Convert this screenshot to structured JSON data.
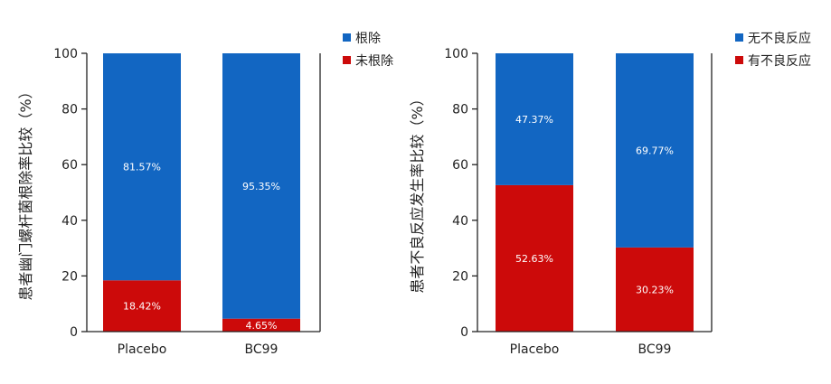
{
  "colors": {
    "blue": "#1266c2",
    "red": "#cc0a0a",
    "axis": "#222222",
    "bar_label": "#ffffff"
  },
  "chart_data": [
    {
      "type": "bar",
      "stacked": true,
      "ylabel": "患者幽门螺杆菌根除率比较（%）",
      "xlabel": "",
      "ylim": [
        0,
        100
      ],
      "yticks": [
        0,
        20,
        40,
        60,
        80,
        100
      ],
      "categories": [
        "Placebo",
        "BC99"
      ],
      "series": [
        {
          "name": "根除",
          "color": "#1266c2",
          "values": [
            81.57,
            95.35
          ],
          "labels": [
            "81.57%",
            "95.35%"
          ]
        },
        {
          "name": "未根除",
          "color": "#cc0a0a",
          "values": [
            18.42,
            4.65
          ],
          "labels": [
            "18.42%",
            "4.65%"
          ]
        }
      ],
      "legend_position": "top-right"
    },
    {
      "type": "bar",
      "stacked": true,
      "ylabel": "患者不良反应发生率比较（%）",
      "xlabel": "",
      "ylim": [
        0,
        100
      ],
      "yticks": [
        0,
        20,
        40,
        60,
        80,
        100
      ],
      "categories": [
        "Placebo",
        "BC99"
      ],
      "series": [
        {
          "name": "无不良反应",
          "color": "#1266c2",
          "values": [
            47.37,
            69.77
          ],
          "labels": [
            "47.37%",
            "69.77%"
          ]
        },
        {
          "name": "有不良反应",
          "color": "#cc0a0a",
          "values": [
            52.63,
            30.23
          ],
          "labels": [
            "52.63%",
            "30.23%"
          ]
        }
      ],
      "legend_position": "top-right"
    }
  ]
}
